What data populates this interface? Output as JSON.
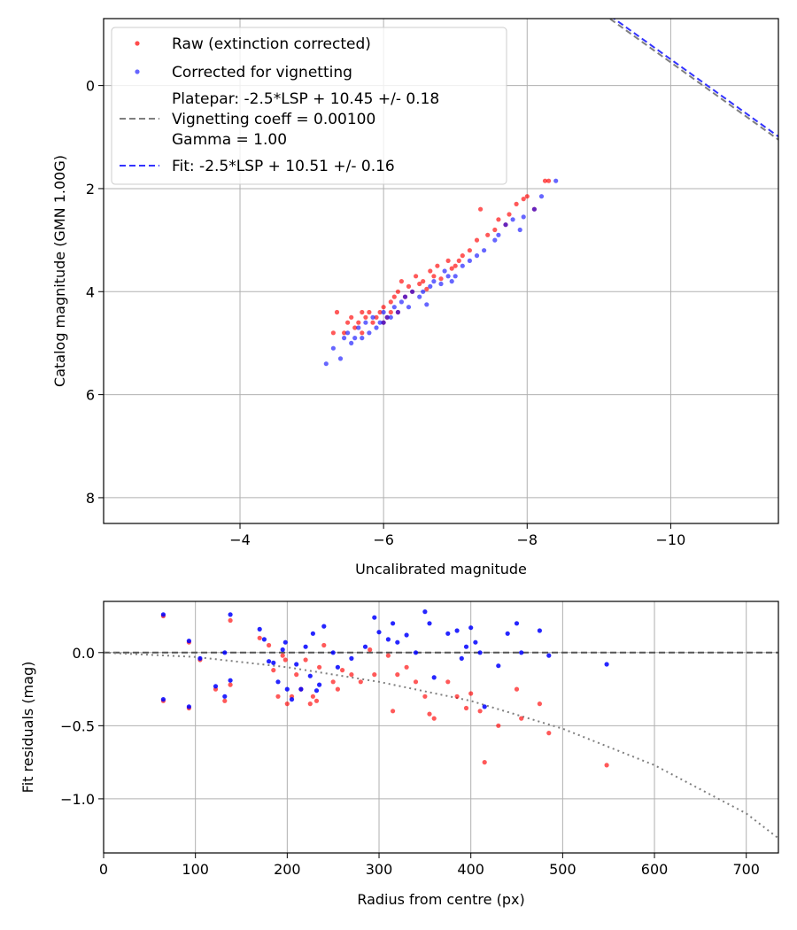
{
  "colors": {
    "raw": "#ff0000",
    "corrected": "#0000ff",
    "platepar_line": "#7f7f7f",
    "fit_line": "#3333ff",
    "vignetting_curve": "#7f7f7f",
    "zero_line": "#555555",
    "grid": "#b0b0b0"
  },
  "chart_data": [
    {
      "type": "scatter",
      "name": "photometry-fit",
      "xlabel": "Uncalibrated magnitude",
      "ylabel": "Catalog magnitude (GMN 1.00G)",
      "xlim": [
        -2.1,
        -11.5
      ],
      "ylim": [
        8.5,
        -1.3
      ],
      "x_ticks": [
        -4,
        -6,
        -8,
        -10
      ],
      "x_tick_labels": [
        "−4",
        "−6",
        "−8",
        "−10"
      ],
      "y_ticks": [
        0,
        2,
        4,
        6,
        8
      ],
      "y_tick_labels": [
        "0",
        "2",
        "4",
        "6",
        "8"
      ],
      "grid": true,
      "legend_position": "top-left",
      "legend": [
        {
          "label": "Raw (extinction corrected)",
          "marker": "dot",
          "color": "#ff0000"
        },
        {
          "label": "Corrected for vignetting",
          "marker": "dot",
          "color": "#0000ff"
        },
        {
          "label": "Platepar: -2.5*LSP + 10.45 +/- 0.18",
          "label2": "Vignetting coeff = 0.00100",
          "label3": "Gamma = 1.00",
          "marker": "dashed-line",
          "color": "#7f7f7f"
        },
        {
          "label": "Fit: -2.5*LSP + 10.51 +/- 0.16",
          "marker": "dashed-line",
          "color": "#3333ff"
        }
      ],
      "lines": [
        {
          "name": "Platepar",
          "slope": -1,
          "intercept": -10.45,
          "style": "dashed",
          "color": "#7f7f7f"
        },
        {
          "name": "Fit",
          "slope": -1,
          "intercept": -10.51,
          "style": "dashed",
          "color": "#3333ff"
        }
      ],
      "series": [
        {
          "name": "Raw (extinction corrected)",
          "color": "#ff0000",
          "x": [
            -5.3,
            -5.35,
            -5.45,
            -5.5,
            -5.55,
            -5.6,
            -5.65,
            -5.7,
            -5.7,
            -5.75,
            -5.8,
            -5.85,
            -5.9,
            -5.95,
            -6.0,
            -6.0,
            -6.05,
            -6.1,
            -6.1,
            -6.15,
            -6.2,
            -6.2,
            -6.25,
            -6.3,
            -6.35,
            -6.4,
            -6.45,
            -6.5,
            -6.55,
            -6.6,
            -6.65,
            -6.7,
            -6.75,
            -6.8,
            -6.9,
            -6.95,
            -7.0,
            -7.05,
            -7.1,
            -7.2,
            -7.3,
            -7.35,
            -7.45,
            -7.55,
            -7.6,
            -7.7,
            -7.75,
            -7.85,
            -7.95,
            -8.0,
            -8.1,
            -8.25,
            -8.3
          ],
          "y": [
            4.8,
            4.4,
            4.8,
            4.6,
            4.5,
            4.7,
            4.6,
            4.4,
            4.8,
            4.5,
            4.4,
            4.6,
            4.5,
            4.4,
            4.3,
            4.6,
            4.5,
            4.2,
            4.4,
            4.1,
            4.0,
            4.4,
            3.8,
            4.1,
            3.9,
            4.0,
            3.7,
            3.85,
            3.8,
            3.95,
            3.6,
            3.7,
            3.5,
            3.75,
            3.4,
            3.55,
            3.5,
            3.4,
            3.3,
            3.2,
            3.0,
            2.4,
            2.9,
            2.8,
            2.6,
            2.7,
            2.5,
            2.3,
            2.2,
            2.15,
            2.4,
            1.85,
            1.85
          ]
        },
        {
          "name": "Corrected for vignetting",
          "color": "#0000ff",
          "x": [
            -5.2,
            -5.3,
            -5.4,
            -5.45,
            -5.5,
            -5.55,
            -5.6,
            -5.65,
            -5.7,
            -5.75,
            -5.8,
            -5.85,
            -5.9,
            -5.95,
            -6.0,
            -6.0,
            -6.05,
            -6.1,
            -6.15,
            -6.2,
            -6.25,
            -6.3,
            -6.35,
            -6.4,
            -6.5,
            -6.55,
            -6.6,
            -6.65,
            -6.7,
            -6.8,
            -6.85,
            -6.9,
            -6.95,
            -7.0,
            -7.1,
            -7.2,
            -7.3,
            -7.4,
            -7.55,
            -7.6,
            -7.7,
            -7.8,
            -7.9,
            -7.95,
            -8.1,
            -8.2,
            -8.4
          ],
          "y": [
            5.4,
            5.1,
            5.3,
            4.9,
            4.8,
            5.0,
            4.9,
            4.7,
            4.9,
            4.6,
            4.8,
            4.5,
            4.7,
            4.6,
            4.6,
            4.4,
            4.5,
            4.5,
            4.3,
            4.4,
            4.2,
            4.1,
            4.3,
            4.0,
            4.1,
            4.0,
            4.25,
            3.9,
            3.8,
            3.85,
            3.6,
            3.7,
            3.8,
            3.7,
            3.5,
            3.4,
            3.3,
            3.2,
            3.0,
            2.9,
            2.7,
            2.6,
            2.8,
            2.55,
            2.4,
            2.15,
            1.85
          ]
        }
      ]
    },
    {
      "type": "scatter",
      "name": "residuals",
      "xlabel": "Radius from centre (px)",
      "ylabel": "Fit residuals (mag)",
      "xlim": [
        0,
        735
      ],
      "ylim": [
        -1.37,
        0.35
      ],
      "x_ticks": [
        0,
        100,
        200,
        300,
        400,
        500,
        600,
        700
      ],
      "x_tick_labels": [
        "0",
        "100",
        "200",
        "300",
        "400",
        "500",
        "600",
        "700"
      ],
      "y_ticks": [
        0.0,
        -0.5,
        -1.0
      ],
      "y_tick_labels": [
        "0.0",
        "−0.5",
        "−1.0"
      ],
      "grid": true,
      "reference_lines": [
        {
          "name": "zero",
          "y": 0.0,
          "style": "dashed",
          "color": "#555555"
        }
      ],
      "vignetting_curve": {
        "style": "dotted",
        "color": "#7f7f7f",
        "x": [
          0,
          100,
          200,
          300,
          400,
          500,
          600,
          700,
          735
        ],
        "y": [
          0.0,
          -0.03,
          -0.1,
          -0.2,
          -0.33,
          -0.52,
          -0.77,
          -1.1,
          -1.27
        ]
      },
      "series": [
        {
          "name": "Raw (extinction corrected)",
          "color": "#ff0000",
          "x": [
            65,
            65,
            93,
            93,
            105,
            122,
            132,
            138,
            138,
            170,
            180,
            185,
            190,
            195,
            198,
            200,
            205,
            210,
            215,
            220,
            225,
            228,
            232,
            235,
            240,
            250,
            255,
            260,
            270,
            280,
            290,
            295,
            310,
            315,
            320,
            330,
            340,
            350,
            355,
            360,
            375,
            385,
            395,
            400,
            410,
            415,
            430,
            450,
            455,
            475,
            485,
            548
          ],
          "y": [
            0.25,
            -0.33,
            0.07,
            -0.38,
            -0.05,
            -0.25,
            -0.33,
            0.22,
            -0.22,
            0.1,
            0.05,
            -0.12,
            -0.3,
            -0.02,
            -0.05,
            -0.35,
            -0.3,
            -0.15,
            -0.25,
            -0.05,
            -0.35,
            -0.3,
            -0.33,
            -0.1,
            0.05,
            -0.2,
            -0.25,
            -0.12,
            -0.15,
            -0.2,
            0.02,
            -0.15,
            -0.02,
            -0.4,
            -0.15,
            -0.1,
            -0.2,
            -0.3,
            -0.42,
            -0.45,
            -0.2,
            -0.3,
            -0.38,
            -0.28,
            -0.4,
            -0.75,
            -0.5,
            -0.25,
            -0.45,
            -0.35,
            -0.55,
            -0.77
          ]
        },
        {
          "name": "Corrected for vignetting",
          "color": "#0000ff",
          "x": [
            65,
            65,
            93,
            93,
            105,
            122,
            132,
            132,
            138,
            138,
            170,
            175,
            180,
            185,
            190,
            195,
            198,
            200,
            205,
            210,
            215,
            220,
            225,
            228,
            232,
            235,
            240,
            250,
            255,
            270,
            285,
            295,
            300,
            310,
            315,
            320,
            330,
            340,
            350,
            355,
            360,
            375,
            385,
            390,
            395,
            400,
            405,
            410,
            415,
            430,
            440,
            450,
            455,
            475,
            485,
            548
          ],
          "y": [
            0.26,
            -0.32,
            0.08,
            -0.37,
            -0.04,
            -0.23,
            -0.3,
            0.0,
            0.26,
            -0.19,
            0.16,
            0.09,
            -0.06,
            -0.07,
            -0.2,
            0.02,
            0.07,
            -0.25,
            -0.32,
            -0.08,
            -0.25,
            0.04,
            -0.16,
            0.13,
            -0.26,
            -0.22,
            0.18,
            0.0,
            -0.1,
            -0.04,
            0.04,
            0.24,
            0.14,
            0.09,
            0.2,
            0.07,
            0.12,
            0.0,
            0.28,
            0.2,
            -0.17,
            0.13,
            0.15,
            -0.04,
            0.04,
            0.17,
            0.07,
            0.0,
            -0.37,
            -0.09,
            0.13,
            0.2,
            0.0,
            0.15,
            -0.02,
            -0.08
          ]
        }
      ]
    }
  ]
}
